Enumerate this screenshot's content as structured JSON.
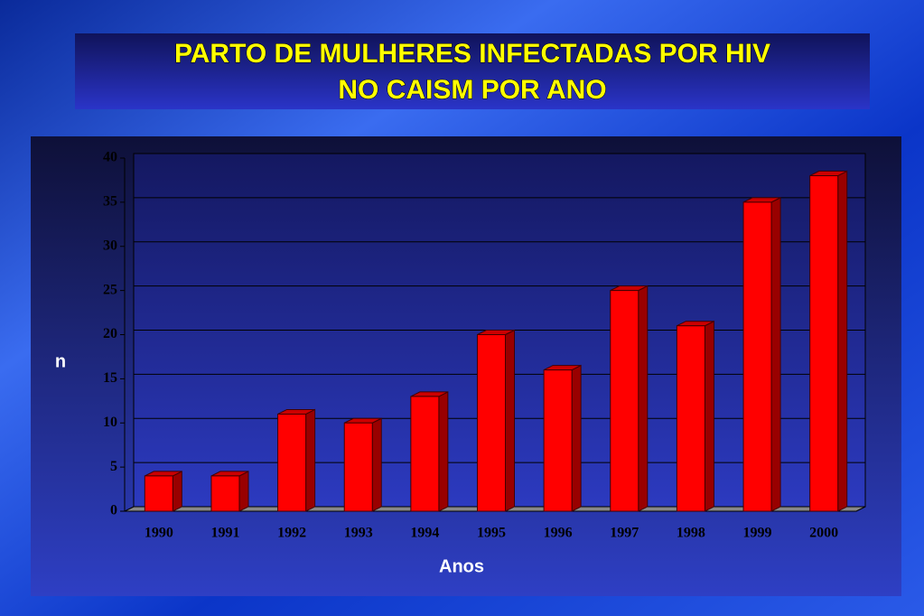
{
  "chart_data": {
    "type": "bar3d",
    "title": [
      "PARTO  DE  MULHERES  INFECTADAS  POR  HIV",
      "NO  CAISM  POR  ANO"
    ],
    "x_label": "Anos",
    "y_label": "n",
    "categories": [
      "1990",
      "1991",
      "1992",
      "1993",
      "1994",
      "1995",
      "1996",
      "1997",
      "1998",
      "1999",
      "2000"
    ],
    "values": [
      4,
      4,
      11,
      10,
      13,
      20,
      16,
      25,
      21,
      35,
      38
    ],
    "color": "#ff0000",
    "ylim": [
      0,
      40
    ],
    "yticks": [
      0,
      5,
      10,
      15,
      20,
      25,
      30,
      35,
      40
    ],
    "grid": true
  }
}
